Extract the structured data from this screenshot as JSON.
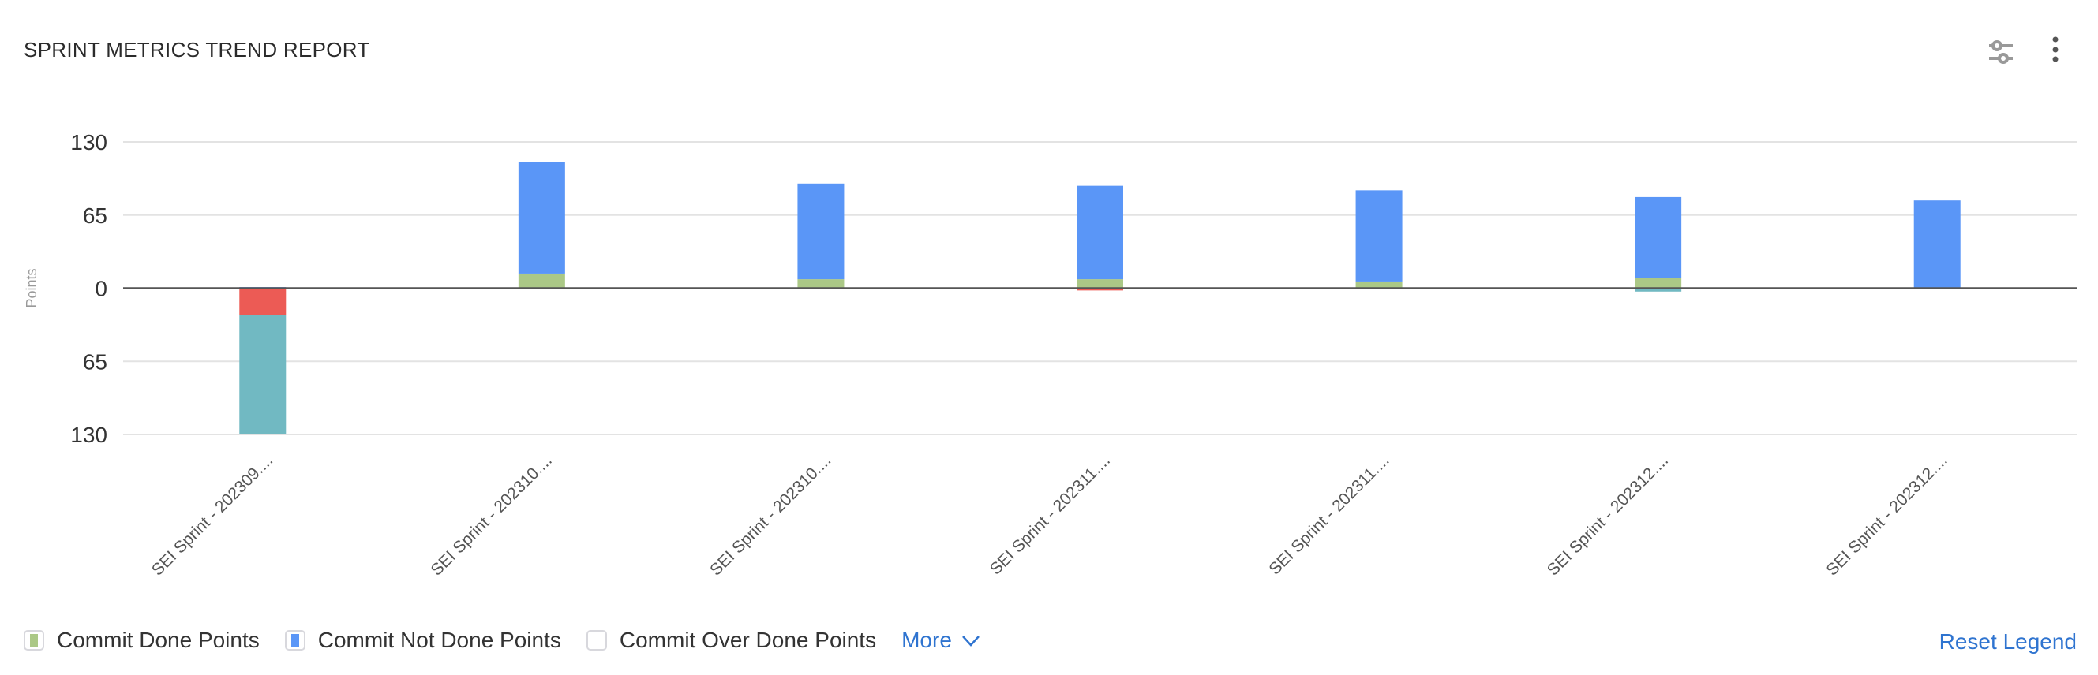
{
  "header": {
    "title": "SPRINT METRICS TREND REPORT",
    "settings_icon": "sliders-icon",
    "menu_icon": "kebab-menu-icon"
  },
  "chart_data": {
    "type": "bar",
    "stacked": true,
    "ylabel": "Points",
    "ylim": [
      -130,
      130
    ],
    "yticks": [
      130,
      65,
      0,
      -65,
      -130
    ],
    "ytick_labels": [
      "130",
      "65",
      "0",
      "65",
      "130"
    ],
    "grid": true,
    "categories": [
      "SEI Sprint - 202309....",
      "SEI Sprint - 202310....",
      "SEI Sprint - 202310....",
      "SEI Sprint - 202311....",
      "SEI Sprint - 202311....",
      "SEI Sprint - 202312....",
      "SEI Sprint - 202312...."
    ],
    "series": [
      {
        "name": "Commit Done Points",
        "color": "#abc886",
        "values": [
          0,
          13,
          8,
          8,
          6,
          9,
          0
        ]
      },
      {
        "name": "Commit Not Done Points",
        "color": "#5a96f7",
        "values": [
          1,
          99,
          85,
          83,
          81,
          72,
          78
        ]
      },
      {
        "color": "#ec5b55",
        "values": [
          -24,
          0,
          0,
          -2,
          0,
          0,
          0
        ]
      },
      {
        "color": "#71b9c2",
        "values": [
          -106,
          0,
          0,
          0,
          0,
          -3,
          0
        ]
      }
    ]
  },
  "legend": {
    "items": [
      {
        "label": "Commit Done Points",
        "color": "#abc886",
        "checked": true
      },
      {
        "label": "Commit Not Done Points",
        "color": "#5a96f7",
        "checked": true
      },
      {
        "label": "Commit Over Done Points",
        "color": "",
        "checked": false
      }
    ],
    "more_label": "More",
    "reset_label": "Reset Legend"
  }
}
